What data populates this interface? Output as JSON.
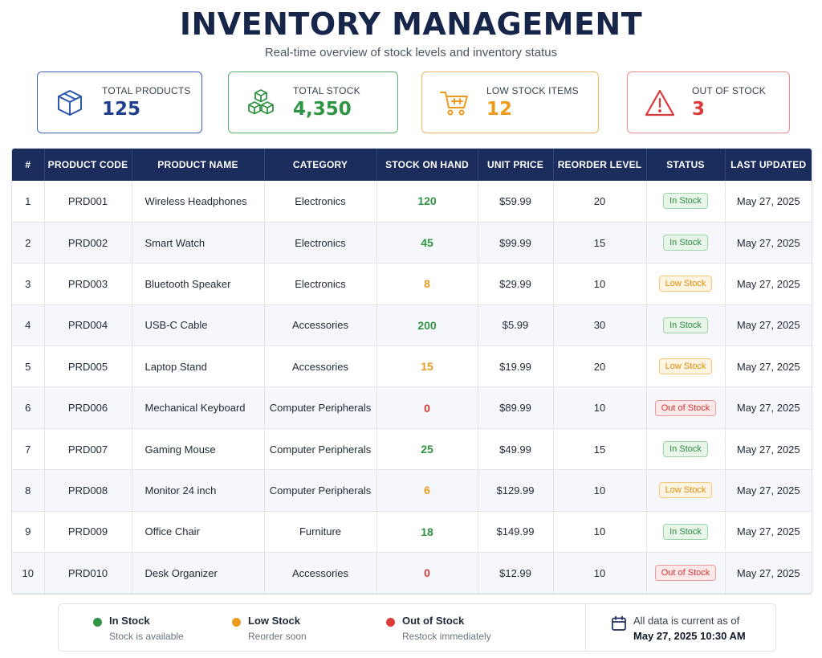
{
  "header": {
    "title": "INVENTORY MANAGEMENT",
    "subtitle": "Real-time overview of stock levels and inventory status"
  },
  "cards": [
    {
      "label": "TOTAL PRODUCTS",
      "value": "125",
      "icon": "box-icon",
      "color": "#1e3f8f"
    },
    {
      "label": "TOTAL STOCK",
      "value": "4,350",
      "icon": "stacked-cubes-icon",
      "color": "#2f9443"
    },
    {
      "label": "LOW STOCK ITEMS",
      "value": "12",
      "icon": "shopping-cart-icon",
      "color": "#ee9a1d"
    },
    {
      "label": "OUT OF STOCK",
      "value": "3",
      "icon": "warning-icon",
      "color": "#dc3a3a"
    }
  ],
  "table": {
    "columns": [
      "#",
      "PRODUCT CODE",
      "PRODUCT NAME",
      "CATEGORY",
      "STOCK ON HAND",
      "UNIT PRICE",
      "REORDER LEVEL",
      "STATUS",
      "LAST UPDATED"
    ],
    "rows": [
      {
        "num": "1",
        "code": "PRD001",
        "name": "Wireless Headphones",
        "category": "Electronics",
        "stock": "120",
        "price": "$59.99",
        "reorder": "20",
        "status": "In Stock",
        "updated": "May 27, 2025"
      },
      {
        "num": "2",
        "code": "PRD002",
        "name": "Smart Watch",
        "category": "Electronics",
        "stock": "45",
        "price": "$99.99",
        "reorder": "15",
        "status": "In Stock",
        "updated": "May 27, 2025"
      },
      {
        "num": "3",
        "code": "PRD003",
        "name": "Bluetooth Speaker",
        "category": "Electronics",
        "stock": "8",
        "price": "$29.99",
        "reorder": "10",
        "status": "Low Stock",
        "updated": "May 27, 2025"
      },
      {
        "num": "4",
        "code": "PRD004",
        "name": "USB-C Cable",
        "category": "Accessories",
        "stock": "200",
        "price": "$5.99",
        "reorder": "30",
        "status": "In Stock",
        "updated": "May 27, 2025"
      },
      {
        "num": "5",
        "code": "PRD005",
        "name": "Laptop Stand",
        "category": "Accessories",
        "stock": "15",
        "price": "$19.99",
        "reorder": "20",
        "status": "Low Stock",
        "updated": "May 27, 2025"
      },
      {
        "num": "6",
        "code": "PRD006",
        "name": "Mechanical Keyboard",
        "category": "Computer Peripherals",
        "stock": "0",
        "price": "$89.99",
        "reorder": "10",
        "status": "Out of Stock",
        "updated": "May 27, 2025"
      },
      {
        "num": "7",
        "code": "PRD007",
        "name": "Gaming Mouse",
        "category": "Computer Peripherals",
        "stock": "25",
        "price": "$49.99",
        "reorder": "15",
        "status": "In Stock",
        "updated": "May 27, 2025"
      },
      {
        "num": "8",
        "code": "PRD008",
        "name": "Monitor 24 inch",
        "category": "Computer Peripherals",
        "stock": "6",
        "price": "$129.99",
        "reorder": "10",
        "status": "Low Stock",
        "updated": "May 27, 2025"
      },
      {
        "num": "9",
        "code": "PRD009",
        "name": "Office Chair",
        "category": "Furniture",
        "stock": "18",
        "price": "$149.99",
        "reorder": "10",
        "status": "In Stock",
        "updated": "May 27, 2025"
      },
      {
        "num": "10",
        "code": "PRD010",
        "name": "Desk Organizer",
        "category": "Accessories",
        "stock": "0",
        "price": "$12.99",
        "reorder": "10",
        "status": "Out of Stock",
        "updated": "May 27, 2025"
      }
    ]
  },
  "legend": {
    "items": [
      {
        "title": "In Stock",
        "desc": "Stock is available",
        "color": "#2f9443"
      },
      {
        "title": "Low Stock",
        "desc": "Reorder soon",
        "color": "#ee9a1d"
      },
      {
        "title": "Out of Stock",
        "desc": "Restock immediately",
        "color": "#dc3a3a"
      }
    ],
    "updated_label": "All data is current as of",
    "updated_value": "May 27, 2025 10:30 AM",
    "updated_icon": "calendar-icon"
  }
}
